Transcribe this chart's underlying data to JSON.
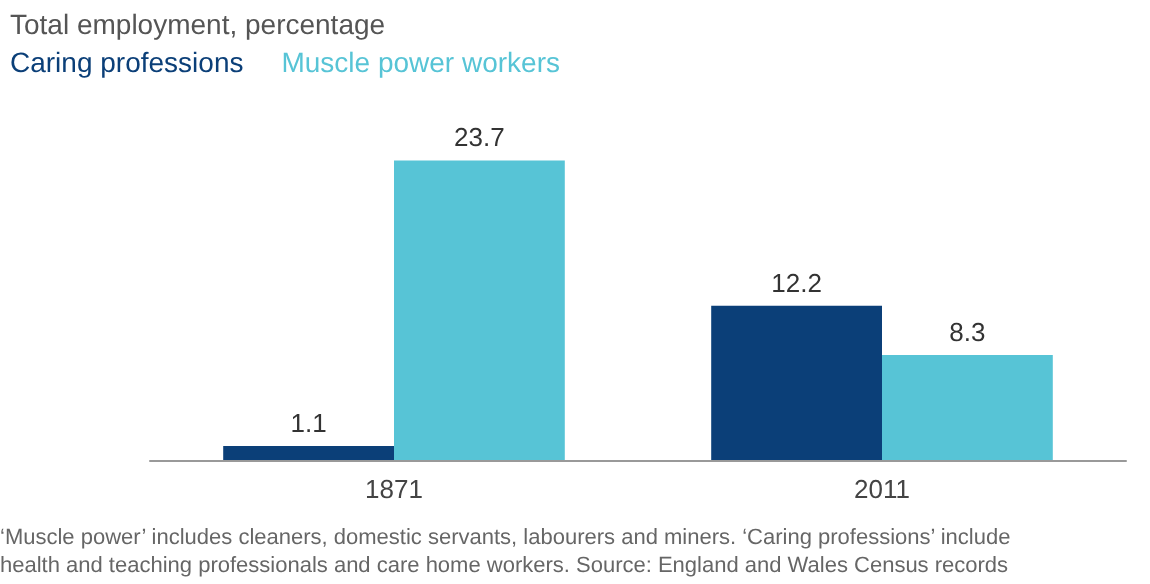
{
  "chart_data": {
    "type": "bar",
    "title": "Total employment, percentage",
    "categories": [
      "1871",
      "2011"
    ],
    "series": [
      {
        "name": "Caring professions",
        "color": "#0b3f78",
        "values": [
          1.1,
          12.2
        ]
      },
      {
        "name": "Muscle power workers",
        "color": "#57c4d6",
        "values": [
          23.7,
          8.3
        ]
      }
    ],
    "data_labels": true,
    "legend": "top left",
    "annotations": [
      "‘Muscle power’ includes cleaners, domestic servants, labourers and miners. ‘Caring professions’ include health and teaching professionals and care home workers. Source: England and Wales Census records"
    ]
  }
}
